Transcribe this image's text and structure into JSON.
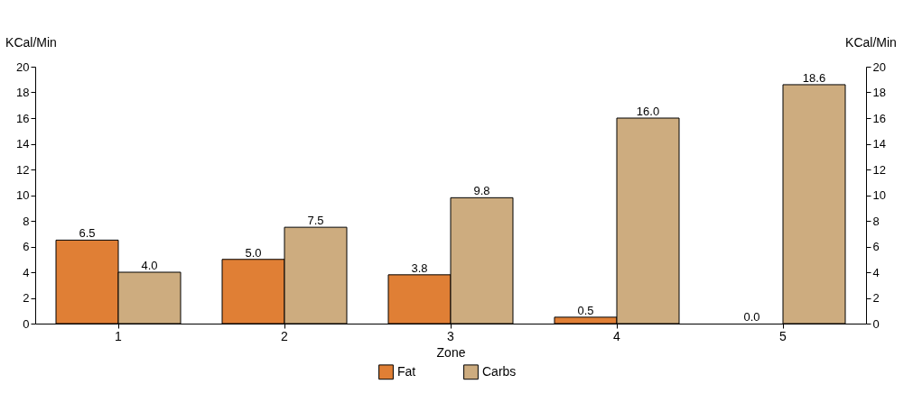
{
  "chart_data": {
    "type": "bar",
    "xlabel": "Zone",
    "ylabel": "KCal/Min",
    "y2label": "KCal/Min",
    "categories": [
      "1",
      "2",
      "3",
      "4",
      "5"
    ],
    "series": [
      {
        "name": "Fat",
        "color": "#e07f35",
        "values": [
          6.5,
          5.0,
          3.8,
          0.5,
          0.0
        ]
      },
      {
        "name": "Carbs",
        "color": "#cdac7f",
        "values": [
          4.0,
          7.5,
          9.8,
          16.0,
          18.6
        ]
      }
    ],
    "ylim": [
      0,
      20
    ],
    "yticks": [
      0,
      2,
      4,
      6,
      8,
      10,
      12,
      14,
      16,
      18,
      20
    ],
    "y2lim": [
      0,
      20
    ],
    "y2ticks": [
      0,
      2,
      4,
      6,
      8,
      10,
      12,
      14,
      16,
      18,
      20
    ],
    "value_labels": [
      [
        "6.5",
        "5.0",
        "3.8",
        "0.5",
        "0.0"
      ],
      [
        "4.0",
        "7.5",
        "9.8",
        "16.0",
        "18.6"
      ]
    ],
    "legend": "bottom",
    "grid": false
  }
}
